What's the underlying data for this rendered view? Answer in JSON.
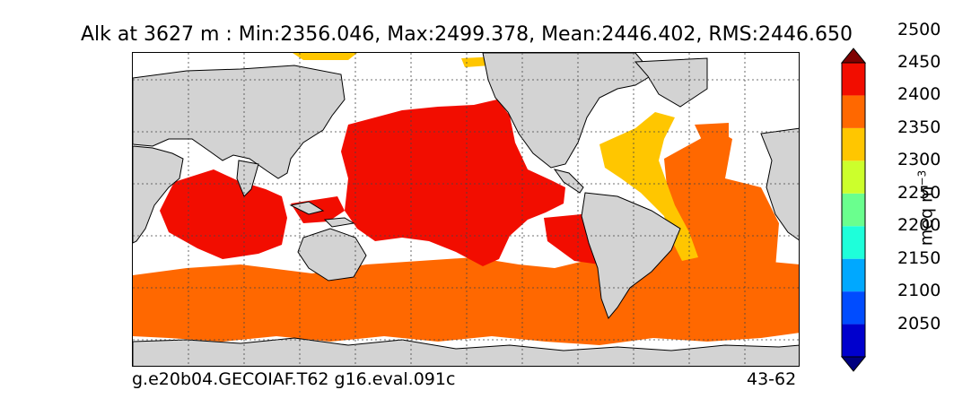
{
  "title": "Alk at 3627 m : Min:2356.046, Max:2499.378, Mean:2446.402, RMS:2446.650",
  "footer": {
    "left": "g.e20b04.GECOIAF.T62 g16.eval.091c",
    "right": "43-62"
  },
  "colorbar": {
    "units_base": "meq m",
    "units_exponent": "−3",
    "ticks": [
      "2050",
      "2100",
      "2150",
      "2200",
      "2250",
      "2300",
      "2350",
      "2400",
      "2450",
      "2500"
    ],
    "colors": [
      "#00007f",
      "#0000cd",
      "#004cff",
      "#00a8ff",
      "#1effda",
      "#6aff8e",
      "#ccff2c",
      "#ffc600",
      "#ff6800",
      "#f20d00",
      "#7f0000"
    ],
    "extend": "both"
  },
  "map": {
    "land_color": "#d3d3d3",
    "missing_color": "#ffffff",
    "regions": [
      {
        "name": "north-pacific",
        "level": "2450-2500",
        "color": "#f20d00"
      },
      {
        "name": "indian-ocean",
        "level": "2450-2500",
        "color": "#f20d00"
      },
      {
        "name": "southern-ocean",
        "level": "2400-2450",
        "color": "#ff6800"
      },
      {
        "name": "south-atlantic",
        "level": "2400-2450",
        "color": "#ff6800"
      },
      {
        "name": "north-atlantic-west",
        "level": "2350-2400",
        "color": "#ffc600"
      }
    ]
  }
}
